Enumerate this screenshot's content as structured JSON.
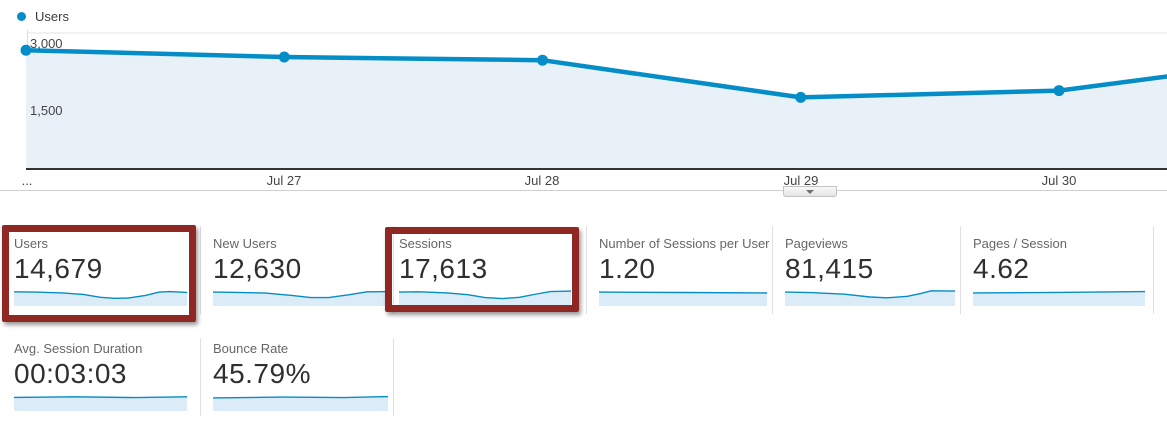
{
  "legend": {
    "label": "Users"
  },
  "chart_data": {
    "type": "line",
    "title": "Users",
    "x_labels": [
      "...",
      "Jul 27",
      "Jul 28",
      "Jul 29",
      "Jul 30"
    ],
    "values": [
      2620,
      2470,
      2400,
      1580,
      1730
    ],
    "edge_value": 2040,
    "ylim": [
      0,
      3000
    ],
    "y_tick_labels": [
      "3,000",
      "1,500"
    ],
    "line_color": "#058dc7",
    "fill_color": "#e8f1f8",
    "legend_position": "top-left",
    "grid": "horizontal"
  },
  "scroll_button": {
    "icon": "chevron-down"
  },
  "cards": {
    "row1": [
      {
        "label": "Users",
        "value": "14,679",
        "highlighted": true,
        "spark": [
          [
            0,
            0.18
          ],
          [
            0.12,
            0.2
          ],
          [
            0.28,
            0.26
          ],
          [
            0.4,
            0.38
          ],
          [
            0.5,
            0.6
          ],
          [
            0.58,
            0.68
          ],
          [
            0.66,
            0.66
          ],
          [
            0.76,
            0.45
          ],
          [
            0.84,
            0.2
          ],
          [
            0.9,
            0.16
          ],
          [
            1,
            0.22
          ]
        ]
      },
      {
        "label": "New Users",
        "value": "12,630",
        "highlighted": false,
        "spark": [
          [
            0,
            0.2
          ],
          [
            0.14,
            0.22
          ],
          [
            0.3,
            0.28
          ],
          [
            0.45,
            0.45
          ],
          [
            0.56,
            0.62
          ],
          [
            0.66,
            0.62
          ],
          [
            0.78,
            0.4
          ],
          [
            0.88,
            0.18
          ],
          [
            1,
            0.16
          ]
        ]
      },
      {
        "label": "Sessions",
        "value": "17,613",
        "highlighted": true,
        "spark": [
          [
            0,
            0.2
          ],
          [
            0.12,
            0.18
          ],
          [
            0.28,
            0.26
          ],
          [
            0.4,
            0.4
          ],
          [
            0.5,
            0.62
          ],
          [
            0.6,
            0.7
          ],
          [
            0.7,
            0.6
          ],
          [
            0.8,
            0.35
          ],
          [
            0.88,
            0.16
          ],
          [
            1,
            0.12
          ]
        ]
      },
      {
        "label": "Number of Sessions per User",
        "value": "1.20",
        "highlighted": false,
        "spark": [
          [
            0,
            0.2
          ],
          [
            0.5,
            0.23
          ],
          [
            1,
            0.27
          ]
        ]
      },
      {
        "label": "Pageviews",
        "value": "81,415",
        "highlighted": false,
        "spark": [
          [
            0,
            0.2
          ],
          [
            0.15,
            0.24
          ],
          [
            0.35,
            0.36
          ],
          [
            0.5,
            0.58
          ],
          [
            0.6,
            0.64
          ],
          [
            0.72,
            0.52
          ],
          [
            0.8,
            0.3
          ],
          [
            0.86,
            0.1
          ],
          [
            1,
            0.12
          ]
        ]
      },
      {
        "label": "Pages / Session",
        "value": "4.62",
        "highlighted": false,
        "spark": [
          [
            0,
            0.26
          ],
          [
            0.5,
            0.22
          ],
          [
            1,
            0.16
          ]
        ]
      }
    ],
    "row2": [
      {
        "label": "Avg. Session Duration",
        "value": "00:03:03",
        "spark": [
          [
            0,
            0.22
          ],
          [
            0.35,
            0.18
          ],
          [
            0.7,
            0.24
          ],
          [
            1,
            0.18
          ]
        ]
      },
      {
        "label": "Bounce Rate",
        "value": "45.79%",
        "spark": [
          [
            0,
            0.26
          ],
          [
            0.4,
            0.2
          ],
          [
            0.75,
            0.24
          ],
          [
            1,
            0.16
          ]
        ]
      }
    ]
  },
  "colors": {
    "accent_blue": "#058dc7",
    "chart_fill": "#e8f1f8",
    "spark_fill": "#dcebf8",
    "highlight_red": "#8f2723",
    "axis_label": "#444444",
    "card_label": "#666666",
    "card_value": "#303030"
  }
}
